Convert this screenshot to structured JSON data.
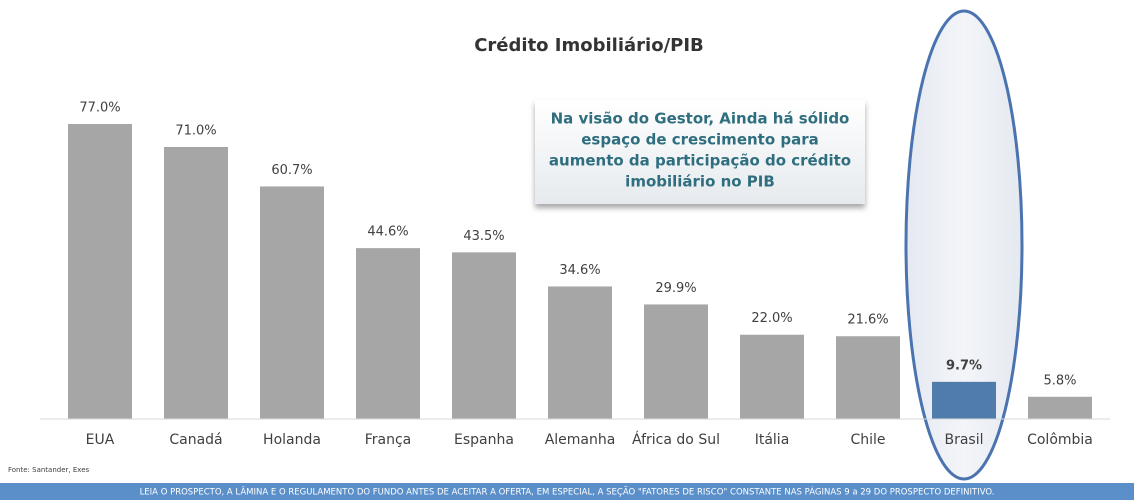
{
  "chart_data": {
    "type": "bar",
    "title": "Crédito Imobiliário/PIB",
    "categories": [
      "EUA",
      "Canadá",
      "Holanda",
      "França",
      "Espanha",
      "Alemanha",
      "África do Sul",
      "Itália",
      "Chile",
      "Brasil",
      "Colômbia"
    ],
    "values": [
      77.0,
      71.0,
      60.7,
      44.6,
      43.5,
      34.6,
      29.9,
      22.0,
      21.6,
      9.7,
      5.8
    ],
    "value_labels": [
      "77.0%",
      "71.0%",
      "60.7%",
      "44.6%",
      "43.5%",
      "34.6%",
      "29.9%",
      "22.0%",
      "21.6%",
      "9.7%",
      "5.8%"
    ],
    "color": "#a6a6a6",
    "colors": [
      "#a6a6a6",
      "#a6a6a6",
      "#a6a6a6",
      "#a6a6a6",
      "#a6a6a6",
      "#a6a6a6",
      "#a6a6a6",
      "#a6a6a6",
      "#a6a6a6",
      "#4f7cab",
      "#a6a6a6"
    ],
    "annotation": [
      "Na visão do Gestor, Ainda há sólido",
      "espaço de crescimento para",
      "aumento da participação do crédito",
      "imobiliário no PIB"
    ],
    "source": "Fonte: Santander, Exes",
    "footer": "LEIA O PROSPECTO, A LÂMINA E O REGULAMENTO DO FUNDO ANTES DE ACEITAR A OFERTA, EM ESPECIAL, A SEÇÃO \"FATORES DE RISCO\" CONSTANTE NAS PÁGINAS 9 a 29 DO PROSPECTO DEFINITIVO."
  }
}
